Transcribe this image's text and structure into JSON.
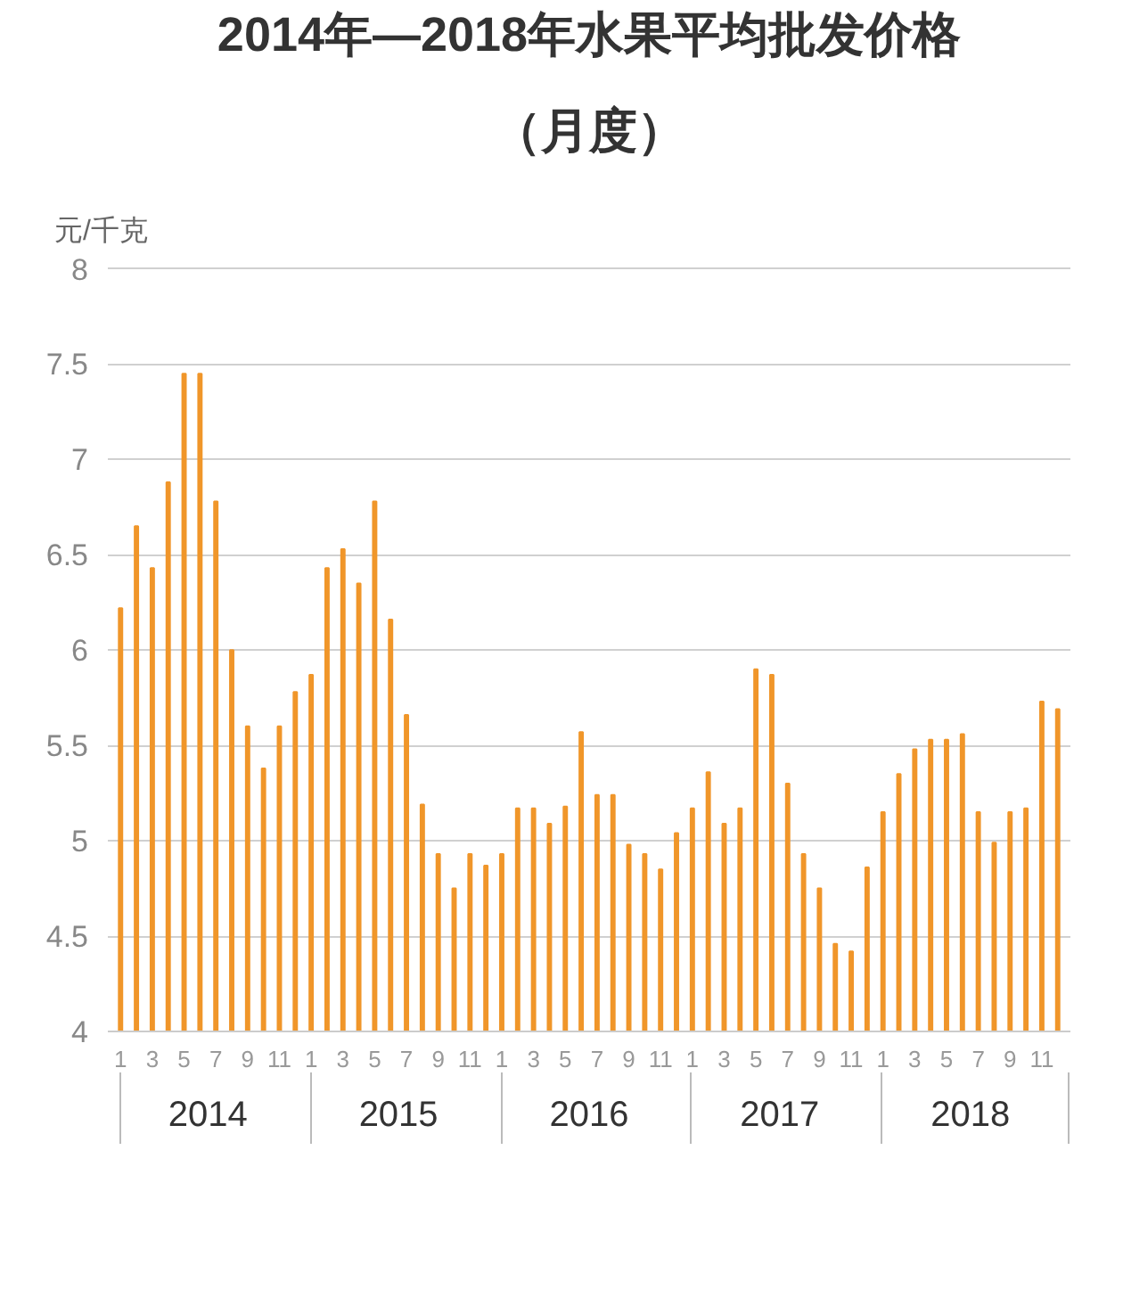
{
  "chart_data": {
    "type": "bar",
    "title": "2014年—2018年水果平均批发价格",
    "subtitle": "（月度）",
    "ylabel": "元/千克",
    "color": "#f0962a",
    "categories": [
      "1",
      null,
      "3",
      null,
      "5",
      null,
      "7",
      null,
      "9",
      null,
      "11",
      null,
      "1",
      null,
      "3",
      null,
      "5",
      null,
      "7",
      null,
      "9",
      null,
      "11",
      null,
      "1",
      null,
      "3",
      null,
      "5",
      null,
      "7",
      null,
      "9",
      null,
      "11",
      null,
      "1",
      null,
      "3",
      null,
      "5",
      null,
      "7",
      null,
      "9",
      null,
      "11",
      null,
      "1",
      null,
      "3",
      null,
      "5",
      null,
      "7",
      null,
      "9",
      null,
      "11",
      null
    ],
    "values": [
      6.22,
      6.65,
      6.43,
      6.88,
      7.45,
      7.45,
      6.78,
      6.0,
      5.6,
      5.38,
      5.6,
      5.78,
      5.87,
      6.43,
      6.53,
      6.35,
      6.78,
      6.16,
      5.66,
      5.19,
      4.93,
      4.75,
      4.93,
      4.87,
      4.93,
      5.17,
      5.17,
      5.09,
      5.18,
      5.57,
      5.24,
      5.24,
      4.98,
      4.93,
      4.85,
      5.04,
      5.17,
      5.36,
      5.09,
      5.17,
      5.9,
      5.87,
      5.3,
      4.93,
      4.75,
      4.46,
      4.42,
      4.86,
      5.15,
      5.35,
      5.48,
      5.53,
      5.53,
      5.56,
      5.15,
      4.99,
      5.15,
      5.17,
      5.73,
      5.69
    ],
    "annotations": [
      "2014",
      "2015",
      "2016",
      "2017",
      "2018"
    ],
    "ylim": [
      4,
      8
    ],
    "yticks": [
      4,
      4.5,
      5,
      5.5,
      6,
      6.5,
      7,
      7.5,
      8
    ],
    "grid": "y"
  }
}
